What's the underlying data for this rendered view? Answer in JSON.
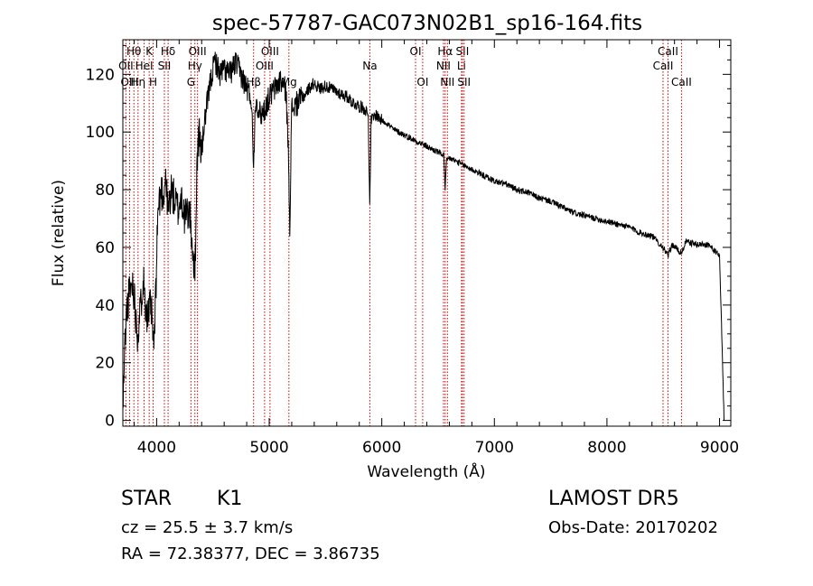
{
  "chart_data": {
    "type": "line",
    "title": "spec-57787-GAC073N02B1_sp16-164.fits",
    "xlabel": "Wavelength (Å)",
    "ylabel": "Flux (relative)",
    "xlim": [
      3700,
      9100
    ],
    "ylim": [
      -2,
      132
    ],
    "xticks": [
      4000,
      5000,
      6000,
      7000,
      8000,
      9000
    ],
    "yticks": [
      0,
      20,
      40,
      60,
      80,
      100,
      120
    ],
    "grid": false,
    "line_color": "#000000",
    "marker_line_color": "#cc0000",
    "spectrum_anchors": [
      [
        3700,
        2
      ],
      [
        3712,
        20
      ],
      [
        3725,
        32
      ],
      [
        3740,
        40
      ],
      [
        3760,
        45
      ],
      [
        3790,
        48
      ],
      [
        3830,
        30
      ],
      [
        3860,
        40
      ],
      [
        3880,
        50
      ],
      [
        3900,
        42
      ],
      [
        3920,
        35
      ],
      [
        3950,
        40
      ],
      [
        3975,
        25
      ],
      [
        3990,
        40
      ],
      [
        4010,
        72
      ],
      [
        4040,
        80
      ],
      [
        4060,
        78
      ],
      [
        4080,
        85
      ],
      [
        4100,
        72
      ],
      [
        4130,
        80
      ],
      [
        4160,
        76
      ],
      [
        4190,
        73
      ],
      [
        4220,
        78
      ],
      [
        4250,
        70
      ],
      [
        4290,
        73
      ],
      [
        4320,
        60
      ],
      [
        4340,
        50
      ],
      [
        4360,
        92
      ],
      [
        4380,
        100
      ],
      [
        4400,
        92
      ],
      [
        4420,
        102
      ],
      [
        4450,
        110
      ],
      [
        4480,
        118
      ],
      [
        4520,
        125
      ],
      [
        4560,
        120
      ],
      [
        4600,
        122
      ],
      [
        4650,
        120
      ],
      [
        4700,
        124
      ],
      [
        4750,
        120
      ],
      [
        4800,
        115
      ],
      [
        4840,
        112
      ],
      [
        4861,
        90
      ],
      [
        4880,
        112
      ],
      [
        4920,
        106
      ],
      [
        4960,
        108
      ],
      [
        5000,
        112
      ],
      [
        5050,
        115
      ],
      [
        5100,
        118
      ],
      [
        5150,
        114
      ],
      [
        5172,
        90
      ],
      [
        5183,
        68
      ],
      [
        5200,
        108
      ],
      [
        5250,
        110
      ],
      [
        5300,
        112
      ],
      [
        5350,
        115
      ],
      [
        5400,
        117
      ],
      [
        5450,
        115
      ],
      [
        5500,
        116
      ],
      [
        5550,
        115
      ],
      [
        5600,
        114
      ],
      [
        5650,
        113
      ],
      [
        5700,
        112
      ],
      [
        5750,
        110
      ],
      [
        5800,
        109
      ],
      [
        5850,
        108
      ],
      [
        5880,
        106
      ],
      [
        5893,
        73
      ],
      [
        5905,
        104
      ],
      [
        5950,
        106
      ],
      [
        6000,
        104
      ],
      [
        6050,
        103
      ],
      [
        6100,
        101
      ],
      [
        6150,
        100
      ],
      [
        6200,
        99
      ],
      [
        6250,
        98
      ],
      [
        6300,
        97
      ],
      [
        6350,
        96
      ],
      [
        6400,
        95
      ],
      [
        6450,
        94
      ],
      [
        6500,
        93
      ],
      [
        6550,
        92
      ],
      [
        6563,
        80
      ],
      [
        6575,
        90
      ],
      [
        6600,
        91
      ],
      [
        6650,
        90
      ],
      [
        6700,
        89
      ],
      [
        6750,
        88
      ],
      [
        6800,
        87
      ],
      [
        6850,
        86
      ],
      [
        6900,
        85
      ],
      [
        6950,
        84
      ],
      [
        7000,
        83
      ],
      [
        7100,
        82
      ],
      [
        7200,
        80
      ],
      [
        7300,
        79
      ],
      [
        7400,
        77
      ],
      [
        7500,
        76
      ],
      [
        7600,
        74
      ],
      [
        7700,
        72
      ],
      [
        7800,
        71
      ],
      [
        7900,
        70
      ],
      [
        8000,
        69
      ],
      [
        8100,
        68
      ],
      [
        8200,
        67
      ],
      [
        8300,
        65
      ],
      [
        8400,
        64
      ],
      [
        8498,
        60
      ],
      [
        8542,
        57
      ],
      [
        8580,
        61
      ],
      [
        8662,
        58
      ],
      [
        8700,
        62
      ],
      [
        8800,
        61
      ],
      [
        8900,
        61
      ],
      [
        8950,
        59
      ],
      [
        9000,
        57
      ],
      [
        9020,
        30
      ],
      [
        9040,
        0
      ]
    ],
    "line_markers": [
      {
        "label": "Hθ",
        "x": 3798,
        "row": 0
      },
      {
        "label": "K",
        "x": 3934,
        "row": 0
      },
      {
        "label": "Hδ",
        "x": 4102,
        "row": 0
      },
      {
        "label": "OII",
        "x": 3727,
        "row": 1
      },
      {
        "label": "HeI",
        "x": 3889,
        "row": 1
      },
      {
        "label": "SII",
        "x": 4069,
        "row": 1
      },
      {
        "label": "OIII",
        "x": 3760,
        "row": 2
      },
      {
        "label": "Hη",
        "x": 3835,
        "row": 2
      },
      {
        "label": "H",
        "x": 3969,
        "row": 2
      },
      {
        "label": "OIII",
        "x": 4363,
        "row": 0
      },
      {
        "label": "Hγ",
        "x": 4340,
        "row": 1
      },
      {
        "label": "G",
        "x": 4305,
        "row": 2
      },
      {
        "label": "OIII",
        "x": 5007,
        "row": 0
      },
      {
        "label": "OIII",
        "x": 4959,
        "row": 1
      },
      {
        "label": "Hβ",
        "x": 4861,
        "row": 2
      },
      {
        "label": "Mg",
        "x": 5175,
        "row": 2
      },
      {
        "label": "Na",
        "x": 5894,
        "row": 1
      },
      {
        "label": "OI",
        "x": 6300,
        "row": 0
      },
      {
        "label": "OI",
        "x": 6363,
        "row": 2
      },
      {
        "label": "Hα",
        "x": 6563,
        "row": 0
      },
      {
        "label": "NII",
        "x": 6548,
        "row": 1
      },
      {
        "label": "NII",
        "x": 6583,
        "row": 2
      },
      {
        "label": "SII",
        "x": 6716,
        "row": 0
      },
      {
        "label": "Li",
        "x": 6708,
        "row": 1
      },
      {
        "label": "SII",
        "x": 6731,
        "row": 2
      },
      {
        "label": "CaII",
        "x": 8542,
        "row": 0
      },
      {
        "label": "CaII",
        "x": 8498,
        "row": 1
      },
      {
        "label": "CaII",
        "x": 8662,
        "row": 2
      }
    ]
  },
  "info": {
    "obj_class": "STAR",
    "subclass": "K1",
    "survey": "LAMOST DR5",
    "cz": "cz = 25.5 ± 3.7 km/s",
    "obs_date": "Obs-Date: 20170202",
    "radec": "RA =  72.38377, DEC =   3.86735"
  }
}
